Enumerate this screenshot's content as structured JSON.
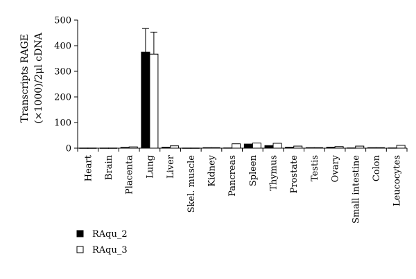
{
  "chart_data": {
    "type": "bar",
    "ylabel_line1": "Transcripts RAGE",
    "ylabel_line2": "(×1000)/2μl cDNA",
    "ylim": [
      0,
      500
    ],
    "yticks": [
      "0",
      "100",
      "200",
      "300",
      "400",
      "500"
    ],
    "categories": [
      "Heart",
      "Brain",
      "Placenta",
      "Lung",
      "Liver",
      "Skel. muscle",
      "Kidney",
      "Pancreas",
      "Spleen",
      "Thymus",
      "Prostate",
      "Testis",
      "Ovary",
      "Small intestine",
      "Colon",
      "Leucocytes"
    ],
    "series": [
      {
        "name": "RAqu_2",
        "color": "#000000",
        "values": [
          0.5,
          0.5,
          3,
          375,
          4,
          0.5,
          2,
          1,
          16,
          10,
          4,
          2,
          4,
          1,
          2,
          1
        ],
        "errors": [
          0,
          0,
          0,
          92,
          0,
          0,
          0,
          0,
          0,
          0,
          0,
          0,
          0,
          0,
          0,
          0
        ]
      },
      {
        "name": "RAqu_3",
        "color": "#ffffff",
        "values": [
          0.5,
          0.5,
          5,
          367,
          9,
          0.5,
          2,
          17,
          20,
          19,
          8,
          2,
          6,
          8,
          2,
          11
        ],
        "errors": [
          0,
          0,
          0,
          86,
          0,
          0,
          0,
          0,
          0,
          0,
          0,
          0,
          0,
          0,
          0,
          0
        ]
      }
    ],
    "legend_placement": "bottom-left",
    "grid": false
  }
}
